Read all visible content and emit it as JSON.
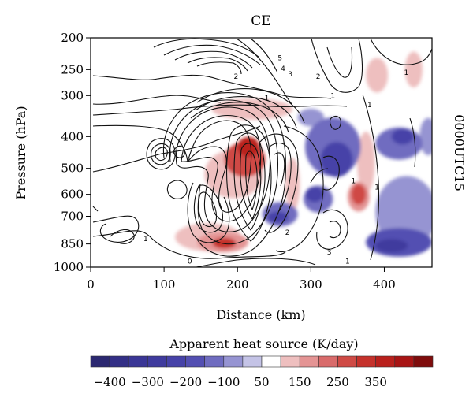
{
  "chart_data": {
    "type": "heatmap",
    "title": "CE",
    "side_label": "0000UTC15",
    "xlabel": "Distance (km)",
    "ylabel": "Pressure (hPa)",
    "xlim": [
      0,
      465
    ],
    "x_ticks": [
      0,
      100,
      200,
      300,
      400
    ],
    "y_ticks": [
      200,
      250,
      300,
      400,
      500,
      600,
      700,
      850,
      1000
    ],
    "y_scale": "log-pressure",
    "colorbar": {
      "label": "Apparent heat source (K/day)",
      "tick_labels": [
        "-400",
        "-300",
        "-200",
        "-100",
        "50",
        "150",
        "250",
        "350"
      ],
      "levels": [
        -450,
        -400,
        -350,
        -300,
        -250,
        -200,
        -150,
        -100,
        -50,
        0,
        50,
        100,
        150,
        200,
        250,
        300,
        350,
        400,
        450
      ],
      "colors": [
        "#2b2870",
        "#332f86",
        "#3a3696",
        "#3f3b9e",
        "#4642a8",
        "#534fb2",
        "#6f6cc0",
        "#9694d2",
        "#c4c3e6",
        "#ffffff",
        "#eebfbf",
        "#e49494",
        "#d96b6b",
        "#cf4a45",
        "#c5312b",
        "#b9201c",
        "#a81414",
        "#7f0c0c"
      ]
    },
    "fill_regions": [
      {
        "x": 215,
        "p": 430,
        "rx": 15,
        "rp": 55,
        "value": 300
      },
      {
        "x": 210,
        "p": 470,
        "rx": 28,
        "rp": 110,
        "value": 200
      },
      {
        "x": 220,
        "p": 330,
        "rx": 55,
        "rp": 45,
        "value": 60
      },
      {
        "x": 195,
        "p": 520,
        "rx": 40,
        "rp": 170,
        "value": 80
      },
      {
        "x": 182,
        "p": 845,
        "rx": 16,
        "rp": 55,
        "value": 250
      },
      {
        "x": 180,
        "p": 840,
        "rx": 35,
        "rp": 110,
        "value": 120
      },
      {
        "x": 160,
        "p": 810,
        "rx": 45,
        "rp": 150,
        "value": 60
      },
      {
        "x": 275,
        "p": 560,
        "rx": 10,
        "rp": 200,
        "value": 60
      },
      {
        "x": 365,
        "p": 600,
        "rx": 10,
        "rp": 80,
        "value": 200
      },
      {
        "x": 365,
        "p": 610,
        "rx": 15,
        "rp": 120,
        "value": 100
      },
      {
        "x": 375,
        "p": 480,
        "rx": 12,
        "rp": 200,
        "value": 60
      },
      {
        "x": 390,
        "p": 260,
        "rx": 15,
        "rp": 60,
        "value": 60
      },
      {
        "x": 440,
        "p": 250,
        "rx": 12,
        "rp": 60,
        "value": 60
      },
      {
        "x": 335,
        "p": 470,
        "rx": 22,
        "rp": 110,
        "value": -250
      },
      {
        "x": 330,
        "p": 430,
        "rx": 38,
        "rp": 170,
        "value": -120
      },
      {
        "x": 305,
        "p": 600,
        "rx": 12,
        "rp": 60,
        "value": -220
      },
      {
        "x": 310,
        "p": 620,
        "rx": 20,
        "rp": 110,
        "value": -120
      },
      {
        "x": 255,
        "p": 705,
        "rx": 14,
        "rp": 50,
        "value": -250
      },
      {
        "x": 258,
        "p": 690,
        "rx": 24,
        "rp": 110,
        "value": -120
      },
      {
        "x": 300,
        "p": 350,
        "rx": 18,
        "rp": 40,
        "value": -80
      },
      {
        "x": 425,
        "p": 400,
        "rx": 15,
        "rp": 40,
        "value": -250
      },
      {
        "x": 420,
        "p": 420,
        "rx": 32,
        "rp": 90,
        "value": -120
      },
      {
        "x": 410,
        "p": 860,
        "rx": 22,
        "rp": 70,
        "value": -300
      },
      {
        "x": 420,
        "p": 840,
        "rx": 45,
        "rp": 160,
        "value": -180
      },
      {
        "x": 430,
        "p": 680,
        "rx": 42,
        "rp": 330,
        "value": -80
      },
      {
        "x": 460,
        "p": 400,
        "rx": 12,
        "rp": 100,
        "value": -80
      }
    ],
    "contour_labels": [
      {
        "x": 258,
        "p": 230,
        "text": "5"
      },
      {
        "x": 262,
        "p": 248,
        "text": "4"
      },
      {
        "x": 272,
        "p": 258,
        "text": "3"
      },
      {
        "x": 310,
        "p": 262,
        "text": "2"
      },
      {
        "x": 198,
        "p": 262,
        "text": "2"
      },
      {
        "x": 240,
        "p": 305,
        "text": "1"
      },
      {
        "x": 330,
        "p": 300,
        "text": "1"
      },
      {
        "x": 380,
        "p": 320,
        "text": "1"
      },
      {
        "x": 430,
        "p": 255,
        "text": "1"
      },
      {
        "x": 358,
        "p": 545,
        "text": "1"
      },
      {
        "x": 390,
        "p": 570,
        "text": "1"
      },
      {
        "x": 268,
        "p": 785,
        "text": "2"
      },
      {
        "x": 325,
        "p": 900,
        "text": "3"
      },
      {
        "x": 350,
        "p": 960,
        "text": "1"
      },
      {
        "x": 135,
        "p": 960,
        "text": "0"
      },
      {
        "x": 75,
        "p": 820,
        "text": "1"
      }
    ]
  }
}
